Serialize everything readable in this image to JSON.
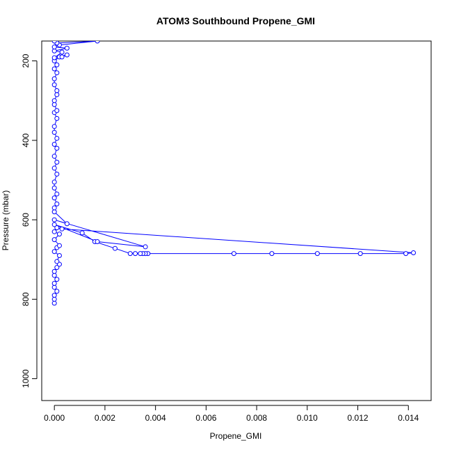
{
  "chart_data": {
    "type": "line",
    "title": "ATOM3 Southbound Propene_GMI",
    "xlabel": "Propene_GMI",
    "ylabel": "Pressure (mbar)",
    "xlim": [
      -0.0005,
      0.0149
    ],
    "ylim": [
      1055,
      150
    ],
    "y_reversed": true,
    "grid": false,
    "color": "#0000ff",
    "marker": "open-circle",
    "x_ticks": [
      {
        "value": 0.0,
        "label": "0.000"
      },
      {
        "value": 0.002,
        "label": "0.002"
      },
      {
        "value": 0.004,
        "label": "0.004"
      },
      {
        "value": 0.006,
        "label": "0.006"
      },
      {
        "value": 0.008,
        "label": "0.008"
      },
      {
        "value": 0.01,
        "label": "0.010"
      },
      {
        "value": 0.012,
        "label": "0.012"
      },
      {
        "value": 0.014,
        "label": "0.014"
      }
    ],
    "y_ticks": [
      {
        "value": 200,
        "label": "200"
      },
      {
        "value": 400,
        "label": "400"
      },
      {
        "value": 600,
        "label": "600"
      },
      {
        "value": 800,
        "label": "800"
      },
      {
        "value": 1000,
        "label": "1000"
      }
    ],
    "series": [
      {
        "points": [
          {
            "x": 0.0,
            "y": 810
          },
          {
            "x": 0.0,
            "y": 800
          },
          {
            "x": 0.0,
            "y": 790
          },
          {
            "x": 0.0001,
            "y": 780
          },
          {
            "x": 0.0,
            "y": 770
          },
          {
            "x": 0.0,
            "y": 760
          },
          {
            "x": 0.0001,
            "y": 750
          },
          {
            "x": 0.0,
            "y": 740
          },
          {
            "x": 0.0,
            "y": 730
          },
          {
            "x": 0.0001,
            "y": 720
          },
          {
            "x": 0.0002,
            "y": 712
          },
          {
            "x": 0.0001,
            "y": 705
          },
          {
            "x": 0.0002,
            "y": 690
          },
          {
            "x": 0.0,
            "y": 680
          },
          {
            "x": 0.0001,
            "y": 670
          },
          {
            "x": 0.0002,
            "y": 665
          },
          {
            "x": 0.0,
            "y": 650
          },
          {
            "x": 0.0002,
            "y": 636
          },
          {
            "x": 0.0,
            "y": 630
          },
          {
            "x": 0.0001,
            "y": 620
          },
          {
            "x": 0.0003,
            "y": 623
          },
          {
            "x": 0.0142,
            "y": 683
          },
          {
            "x": 0.0139,
            "y": 685
          },
          {
            "x": 0.0121,
            "y": 685
          },
          {
            "x": 0.0104,
            "y": 685
          },
          {
            "x": 0.0086,
            "y": 685
          },
          {
            "x": 0.0071,
            "y": 685
          },
          {
            "x": 0.0037,
            "y": 685
          },
          {
            "x": 0.0036,
            "y": 685
          },
          {
            "x": 0.0035,
            "y": 685
          },
          {
            "x": 0.0034,
            "y": 685
          },
          {
            "x": 0.0032,
            "y": 685
          },
          {
            "x": 0.003,
            "y": 685
          },
          {
            "x": 0.0024,
            "y": 672
          },
          {
            "x": 0.0016,
            "y": 655
          },
          {
            "x": 0.0011,
            "y": 633
          },
          {
            "x": 0.0,
            "y": 612
          },
          {
            "x": 0.0017,
            "y": 655
          },
          {
            "x": 0.0036,
            "y": 668
          },
          {
            "x": 0.0,
            "y": 600
          },
          {
            "x": 0.0005,
            "y": 610
          },
          {
            "x": 0.0,
            "y": 580
          },
          {
            "x": 0.0,
            "y": 570
          },
          {
            "x": 0.0001,
            "y": 560
          },
          {
            "x": 0.0,
            "y": 545
          },
          {
            "x": 0.0001,
            "y": 535
          },
          {
            "x": 0.0,
            "y": 520
          },
          {
            "x": 0.0,
            "y": 505
          },
          {
            "x": 0.0001,
            "y": 485
          },
          {
            "x": 0.0,
            "y": 470
          },
          {
            "x": 0.0001,
            "y": 455
          },
          {
            "x": 0.0,
            "y": 440
          },
          {
            "x": 0.0001,
            "y": 420
          },
          {
            "x": 0.0,
            "y": 410
          },
          {
            "x": 0.0001,
            "y": 395
          },
          {
            "x": 0.0,
            "y": 380
          },
          {
            "x": 0.0,
            "y": 365
          },
          {
            "x": 0.0001,
            "y": 345
          },
          {
            "x": 0.0,
            "y": 330
          },
          {
            "x": 0.0001,
            "y": 325
          },
          {
            "x": 0.0,
            "y": 310
          },
          {
            "x": 0.0,
            "y": 300
          },
          {
            "x": 0.0001,
            "y": 285
          },
          {
            "x": 0.0001,
            "y": 275
          },
          {
            "x": 0.0,
            "y": 260
          },
          {
            "x": 0.0,
            "y": 245
          },
          {
            "x": 0.0001,
            "y": 230
          },
          {
            "x": 0.0,
            "y": 220
          },
          {
            "x": 0.0001,
            "y": 210
          },
          {
            "x": 0.0,
            "y": 200
          },
          {
            "x": 0.0002,
            "y": 190
          },
          {
            "x": 0.0003,
            "y": 190
          },
          {
            "x": 0.0005,
            "y": 185
          },
          {
            "x": 0.0,
            "y": 192
          },
          {
            "x": 0.0003,
            "y": 178
          },
          {
            "x": 0.0,
            "y": 175
          },
          {
            "x": 0.0005,
            "y": 168
          },
          {
            "x": 0.0,
            "y": 165
          },
          {
            "x": 0.0002,
            "y": 160
          },
          {
            "x": 0.0017,
            "y": 150
          },
          {
            "x": 0.0001,
            "y": 155
          },
          {
            "x": 0.0,
            "y": 150
          }
        ]
      }
    ]
  }
}
